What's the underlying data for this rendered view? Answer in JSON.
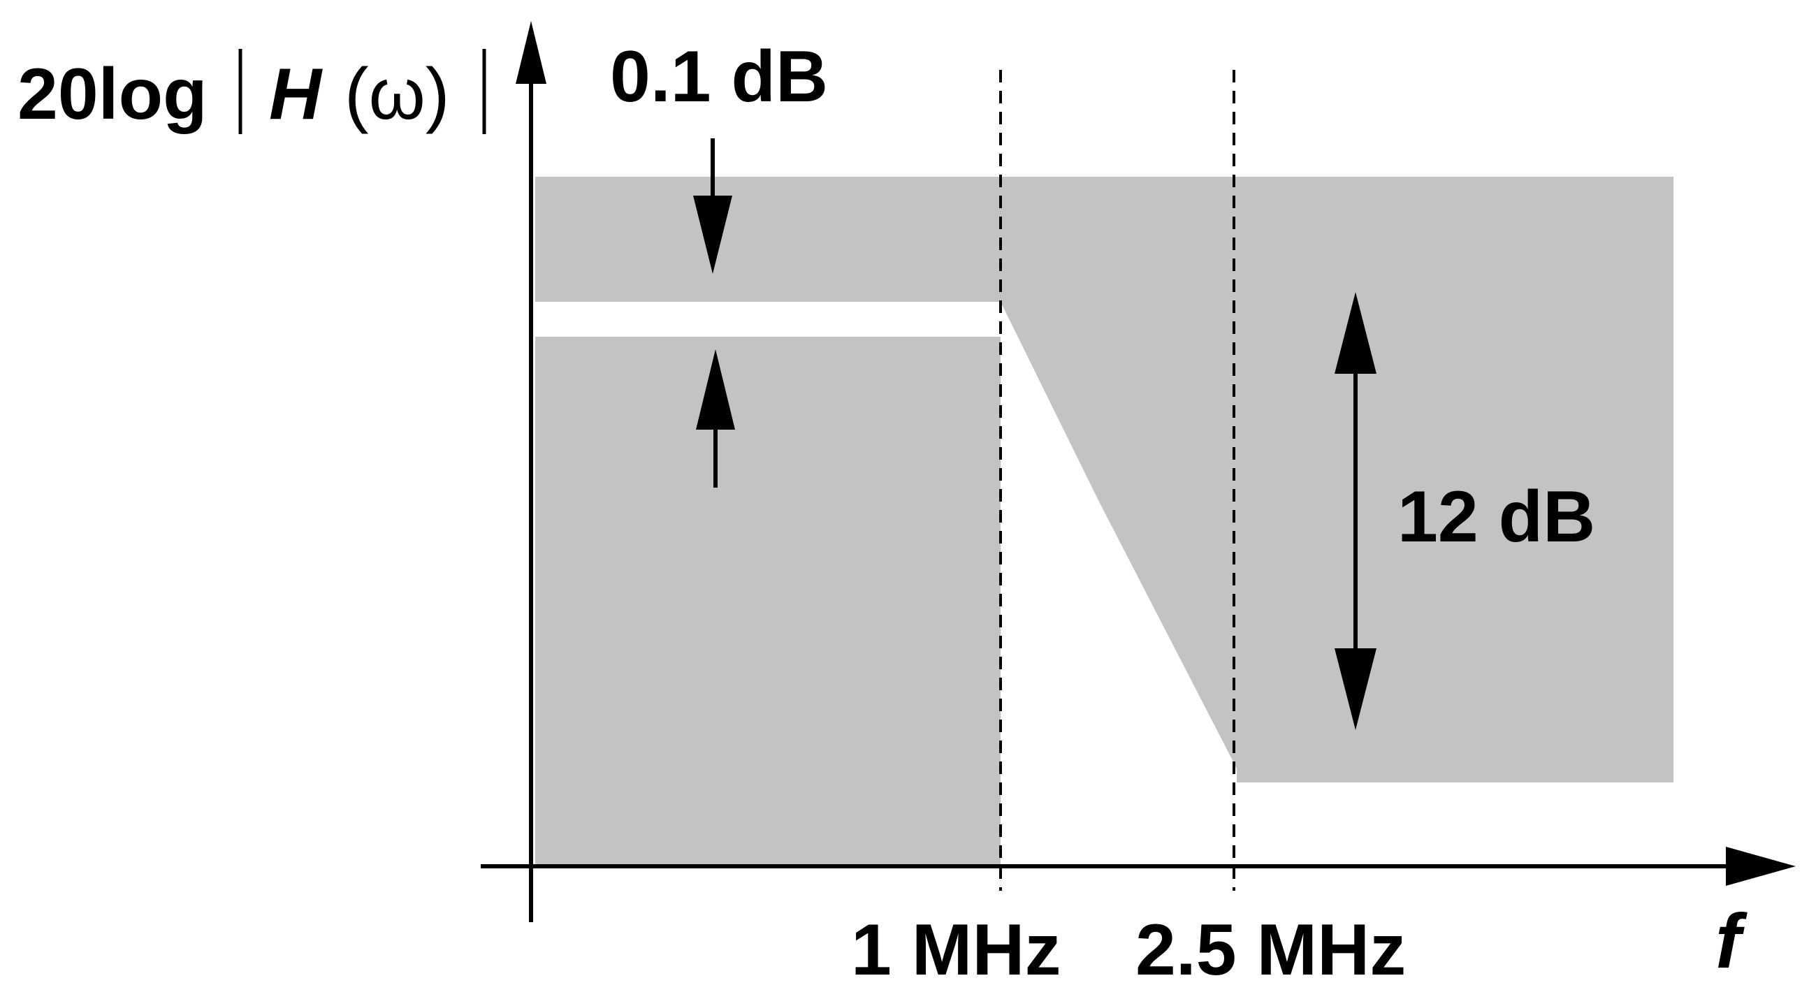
{
  "diagram": {
    "y_axis_label": {
      "prefix": "20log",
      "function_symbol": "H",
      "argument": "(ω)"
    },
    "x_axis_label": "f",
    "passband_ripple_label": "0.1 dB",
    "stopband_attenuation_label": "12 dB",
    "passband_edge_label": "1 MHz",
    "stopband_edge_label": "2.5 MHz",
    "colors": {
      "shaded_region": "#c3c3c3",
      "background": "#ffffff",
      "lines": "#000000"
    }
  }
}
